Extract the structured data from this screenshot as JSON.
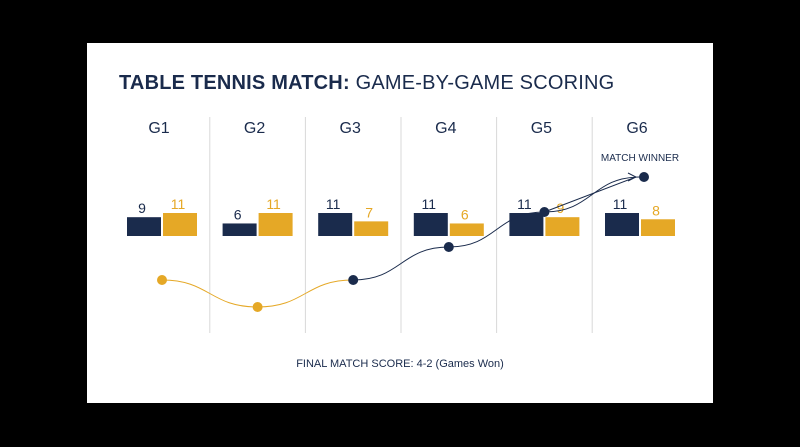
{
  "title": {
    "bold": "TABLE TENNIS MATCH:",
    "rest": " GAME-BY-GAME SCORING"
  },
  "footer": "FINAL MATCH SCORE: 4-2 (Games Won)",
  "colors": {
    "player_a": "#1a2b4c",
    "player_b": "#e5a826",
    "divider": "#d8d8d8",
    "text": "#1a2b4c",
    "card": "#ffffff",
    "background": "#000000"
  },
  "chart_data": {
    "type": "bar",
    "categories": [
      "G1",
      "G2",
      "G3",
      "G4",
      "G5",
      "G6"
    ],
    "series": [
      {
        "values": [
          9,
          6,
          11,
          11,
          11,
          11
        ],
        "color": "#1a2b4c"
      },
      {
        "values": [
          11,
          11,
          7,
          6,
          9,
          8
        ],
        "color": "#e5a826"
      }
    ],
    "game_winner": [
      "player_b",
      "player_b",
      "player_a",
      "player_a",
      "player_a",
      "player_a"
    ],
    "annotations": [
      {
        "text": "MATCH WINNER",
        "game": "G6"
      }
    ]
  }
}
